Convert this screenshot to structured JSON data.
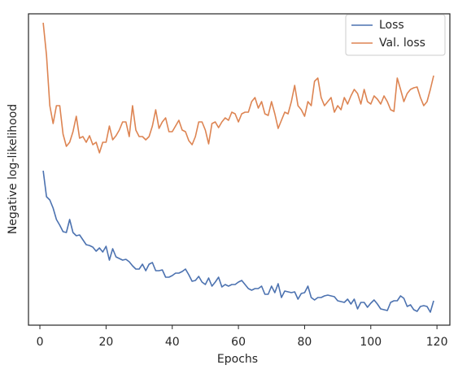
{
  "chart_data": {
    "type": "line",
    "xlabel": "Epochs",
    "ylabel": "Negative log-likelihood",
    "x": [
      1,
      2,
      3,
      4,
      5,
      6,
      7,
      8,
      9,
      10,
      11,
      12,
      13,
      14,
      15,
      16,
      17,
      18,
      19,
      20,
      21,
      22,
      23,
      24,
      25,
      26,
      27,
      28,
      29,
      30,
      31,
      32,
      33,
      34,
      35,
      36,
      37,
      38,
      39,
      40,
      41,
      42,
      43,
      44,
      45,
      46,
      47,
      48,
      49,
      50,
      51,
      52,
      53,
      54,
      55,
      56,
      57,
      58,
      59,
      60,
      61,
      62,
      63,
      64,
      65,
      66,
      67,
      68,
      69,
      70,
      71,
      72,
      73,
      74,
      75,
      76,
      77,
      78,
      79,
      80,
      81,
      82,
      83,
      84,
      85,
      86,
      87,
      88,
      89,
      90,
      91,
      92,
      93,
      94,
      95,
      96,
      97,
      98,
      99,
      100,
      101,
      102,
      103,
      104,
      105,
      106,
      107,
      108,
      109,
      110,
      111,
      112,
      113,
      114,
      115,
      116,
      117,
      118,
      119
    ],
    "series": [
      {
        "name": "Loss",
        "color": "#4c72b0",
        "values": [
          190,
          158,
          154,
          144,
          130,
          123,
          115,
          114,
          130,
          114,
          110,
          111,
          105,
          99,
          98,
          96,
          91,
          95,
          90,
          97,
          80,
          94,
          84,
          82,
          80,
          81,
          78,
          73,
          69,
          69,
          75,
          67,
          75,
          77,
          67,
          67,
          68,
          59,
          59,
          61,
          64,
          64,
          66,
          69,
          62,
          54,
          55,
          60,
          53,
          50,
          58,
          48,
          53,
          59,
          47,
          50,
          48,
          50,
          50,
          53,
          55,
          50,
          45,
          43,
          45,
          45,
          48,
          38,
          38,
          48,
          40,
          51,
          34,
          42,
          41,
          40,
          41,
          32,
          39,
          40,
          48,
          34,
          31,
          34,
          34,
          36,
          37,
          36,
          35,
          30,
          29,
          28,
          32,
          26,
          32,
          20,
          28,
          28,
          22,
          27,
          31,
          26,
          20,
          19,
          18,
          28,
          30,
          30,
          36,
          33,
          23,
          25,
          19,
          17,
          23,
          24,
          23,
          16,
          30
        ]
      },
      {
        "name": "Val. loss",
        "color": "#dd8452",
        "values": [
          372,
          332,
          270,
          248,
          270,
          270,
          235,
          220,
          225,
          238,
          257,
          230,
          232,
          225,
          233,
          222,
          225,
          212,
          225,
          225,
          245,
          228,
          233,
          240,
          250,
          250,
          232,
          270,
          240,
          232,
          232,
          228,
          232,
          245,
          265,
          242,
          250,
          255,
          238,
          238,
          245,
          252,
          240,
          238,
          227,
          222,
          232,
          250,
          250,
          240,
          223,
          248,
          250,
          243,
          250,
          255,
          252,
          262,
          260,
          250,
          260,
          262,
          262,
          275,
          280,
          267,
          275,
          260,
          258,
          275,
          260,
          242,
          252,
          262,
          260,
          275,
          295,
          270,
          265,
          257,
          275,
          270,
          300,
          304,
          280,
          270,
          275,
          280,
          262,
          270,
          265,
          280,
          272,
          282,
          290,
          285,
          272,
          290,
          275,
          272,
          282,
          278,
          272,
          282,
          275,
          265,
          263,
          304,
          290,
          275,
          285,
          290,
          292,
          293,
          280,
          270,
          275,
          290,
          307
        ]
      }
    ],
    "xlim": [
      -3.45,
      123.9
    ],
    "ylim": [
      0,
      383
    ],
    "xticks": [
      0,
      20,
      40,
      60,
      80,
      100,
      120
    ],
    "legend": "upper right",
    "grid": false
  }
}
